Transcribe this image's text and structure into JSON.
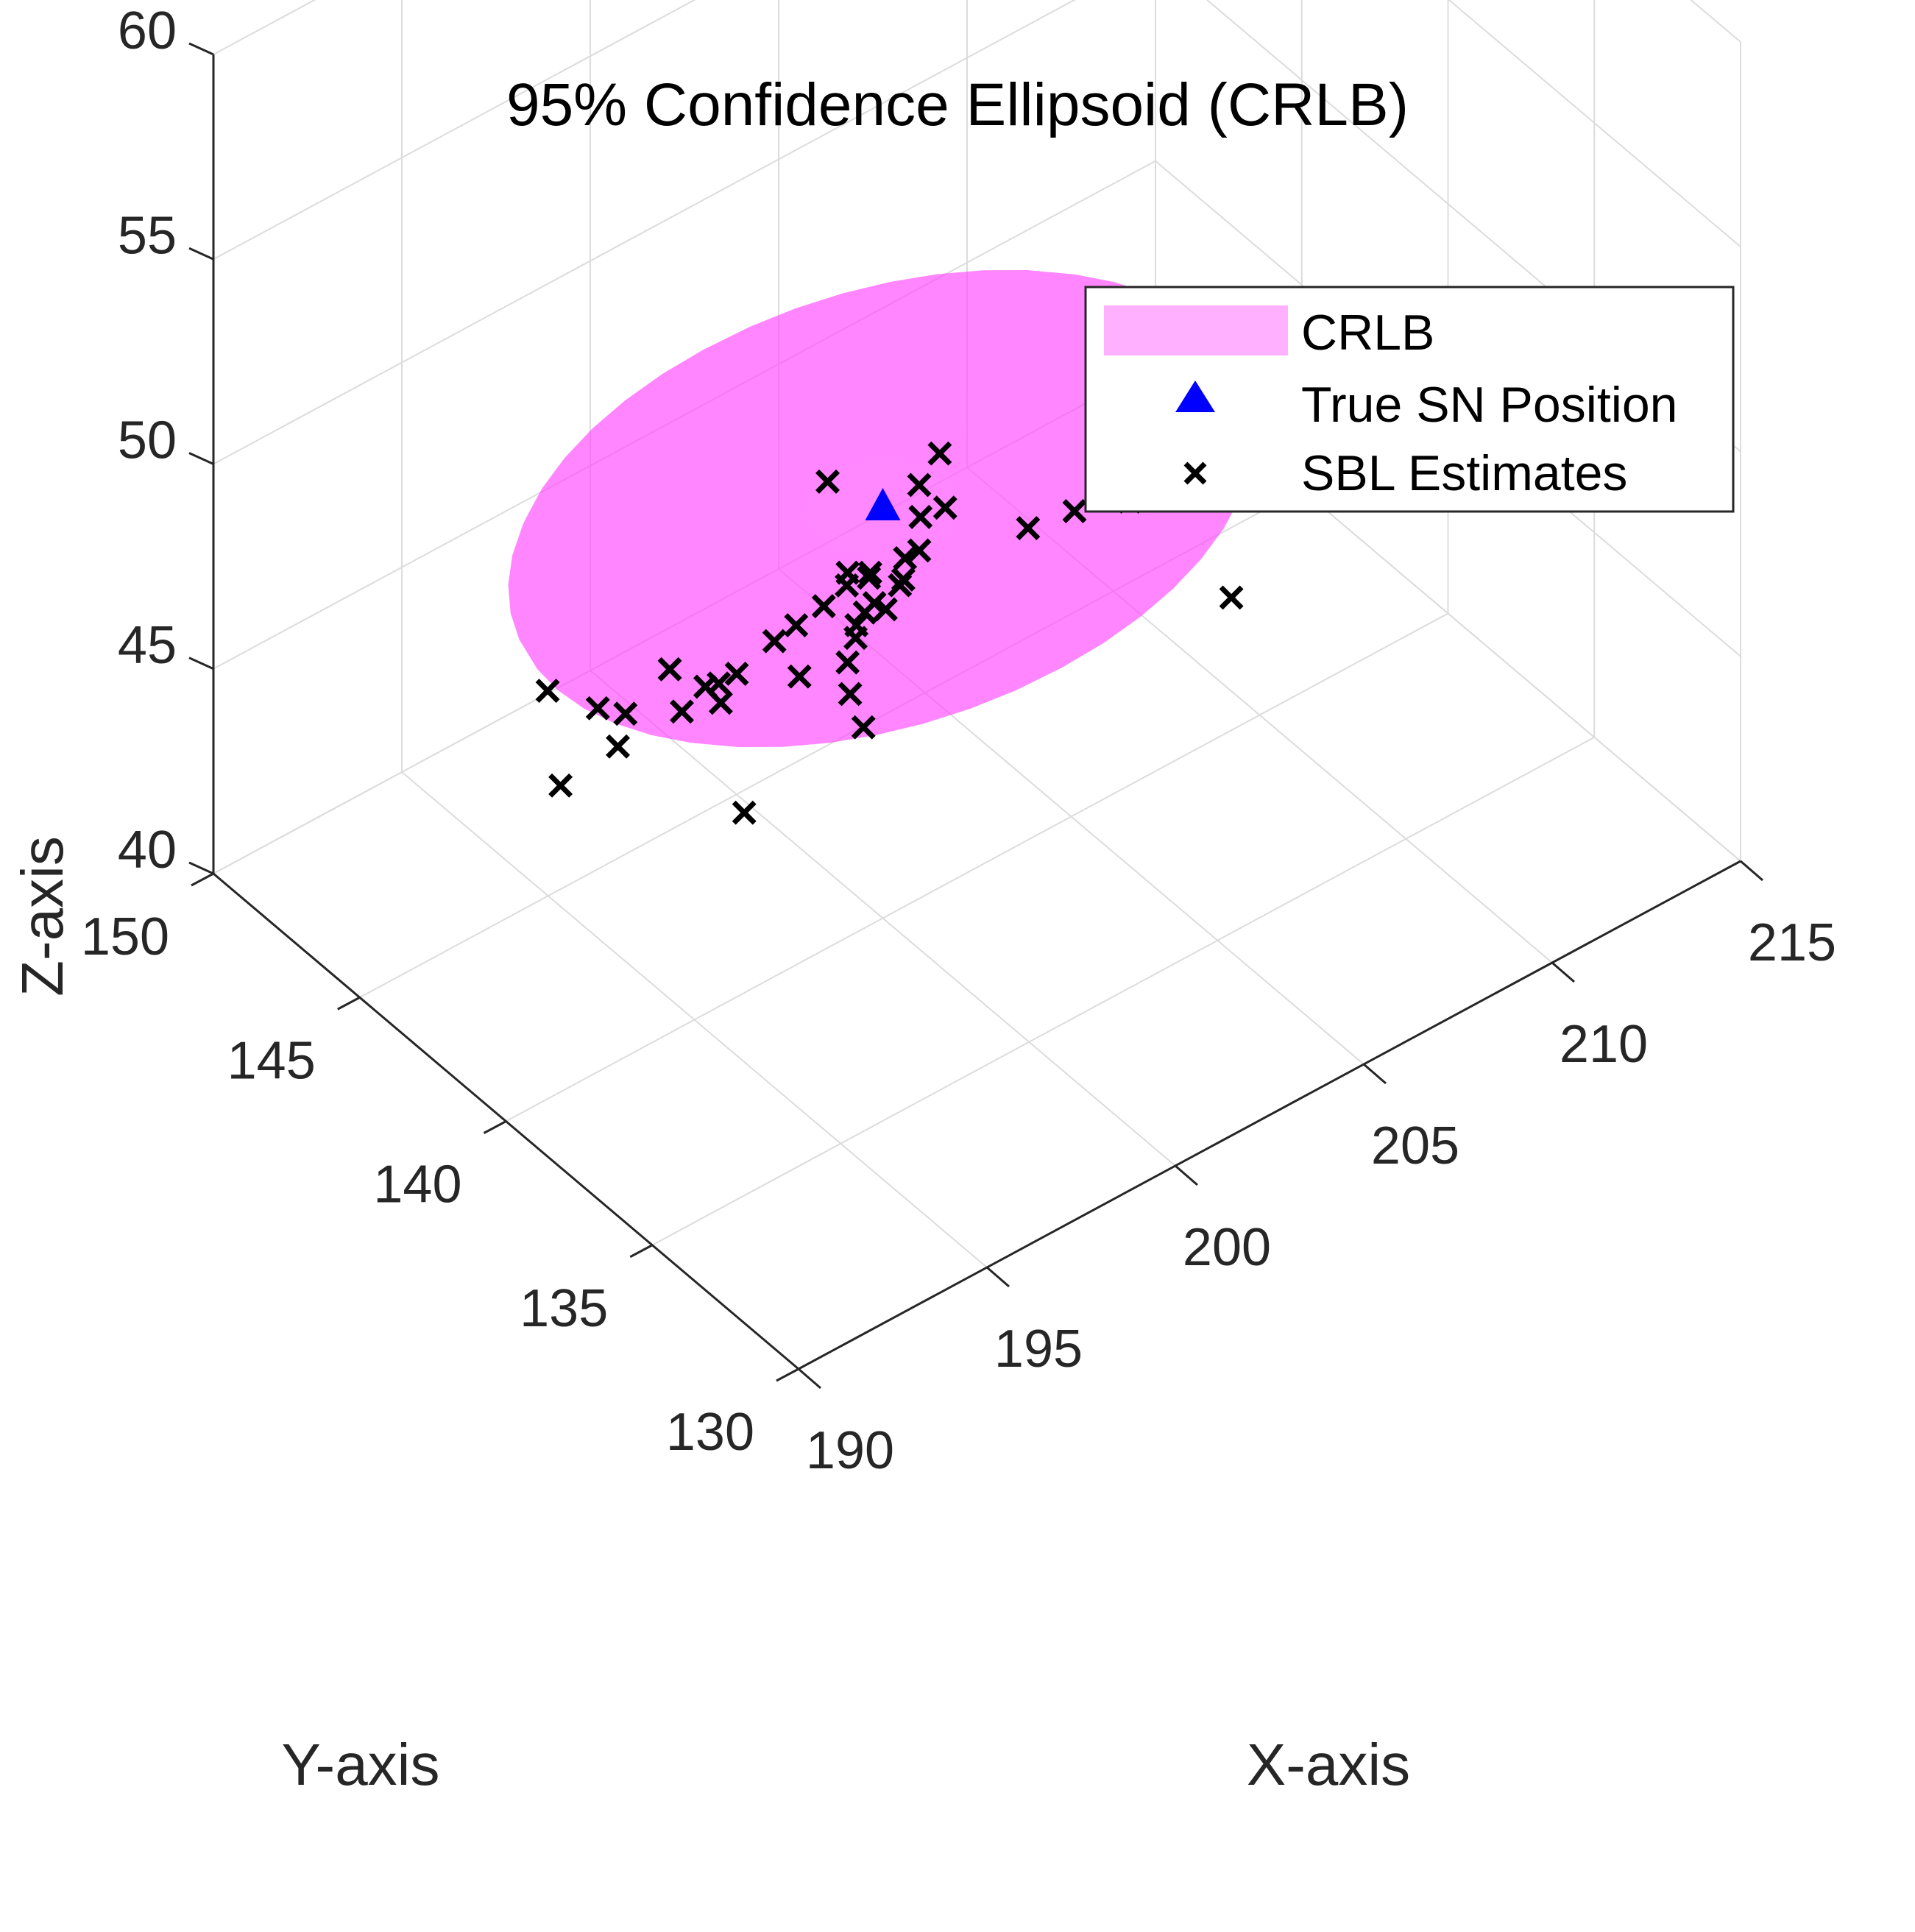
{
  "chart_data": {
    "type": "scatter",
    "title": "95% Confidence Ellipsoid (CRLB)",
    "xlabel": "X-axis",
    "ylabel": "Y-axis",
    "zlabel": "Z-axis",
    "xlim": [
      190,
      215
    ],
    "ylim": [
      130,
      150
    ],
    "zlim": [
      40,
      60
    ],
    "xticks": [
      "190",
      "195",
      "200",
      "205",
      "210",
      "215"
    ],
    "yticks": [
      "130",
      "135",
      "140",
      "145",
      "150"
    ],
    "zticks": [
      "40",
      "45",
      "50",
      "55",
      "60"
    ],
    "grid": true,
    "legend": {
      "position": "top-right",
      "entries": [
        "CRLB",
        "True SN Position",
        "SBL Estimates"
      ]
    },
    "colors": {
      "ellipsoid": "#ff44ff",
      "true_marker": "#0000ff",
      "estimate_marker": "#000000",
      "axis": "#262626",
      "grid": "#dcdcdc"
    },
    "ellipsoid": {
      "name": "CRLB",
      "center": [
        200,
        140,
        50
      ],
      "semi_axes": [
        8.7,
        6.2,
        1.2
      ],
      "opacity": 0.65
    },
    "true_position": {
      "name": "True SN Position",
      "x": 200,
      "y": 140,
      "z": 50
    },
    "series": [
      {
        "name": "SBL Estimates",
        "points": [
          [
            199.7,
            141.5,
            49.9
          ],
          [
            201.2,
            140.3,
            49.8
          ],
          [
            201.9,
            140.5,
            50.1
          ],
          [
            201.0,
            140.0,
            49.3
          ],
          [
            201.5,
            139.8,
            49.4
          ],
          [
            199.3,
            140.3,
            48.6
          ],
          [
            199.2,
            140.2,
            48.4
          ],
          [
            199.9,
            140.3,
            48.3
          ],
          [
            200.9,
            140.4,
            48.1
          ],
          [
            201.2,
            140.3,
            48.2
          ],
          [
            200.3,
            139.8,
            48.1
          ],
          [
            199.7,
            139.9,
            47.9
          ],
          [
            200.1,
            140.6,
            47.9
          ],
          [
            198.9,
            140.6,
            47.8
          ],
          [
            200.7,
            140.2,
            47.8
          ],
          [
            199.6,
            140.1,
            47.6
          ],
          [
            200.0,
            139.9,
            47.6
          ],
          [
            198.4,
            140.9,
            47.4
          ],
          [
            199.3,
            140.0,
            47.5
          ],
          [
            197.9,
            141.0,
            47.2
          ],
          [
            199.2,
            139.9,
            47.3
          ],
          [
            198.6,
            139.4,
            47.3
          ],
          [
            198.1,
            140.4,
            46.6
          ],
          [
            196.9,
            141.0,
            46.9
          ],
          [
            196.5,
            141.1,
            46.8
          ],
          [
            196.3,
            141.3,
            46.7
          ],
          [
            196.4,
            140.9,
            46.5
          ],
          [
            195.6,
            141.2,
            46.5
          ],
          [
            195.9,
            142.0,
            46.9
          ],
          [
            193.9,
            143.6,
            46.4
          ],
          [
            194.3,
            142.4,
            46.5
          ],
          [
            194.8,
            142.1,
            46.3
          ],
          [
            194.6,
            142.1,
            45.6
          ],
          [
            193.0,
            142.0,
            45.5
          ],
          [
            198.9,
            139.7,
            46.2
          ],
          [
            198.4,
            138.6,
            46.3
          ],
          [
            203.0,
            138.9,
            48.7
          ],
          [
            204.0,
            138.6,
            48.8
          ],
          [
            205.0,
            138.0,
            48.9
          ],
          [
            206.0,
            137.7,
            50.4
          ],
          [
            206.3,
            136.2,
            47.0
          ],
          [
            196.4,
            140.1,
            44.3
          ]
        ]
      }
    ]
  }
}
